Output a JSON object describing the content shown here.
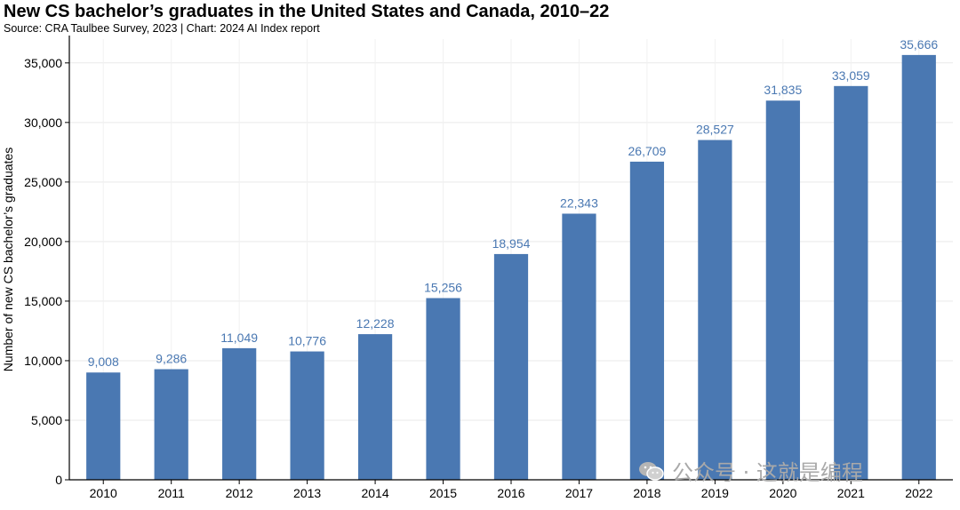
{
  "header": {
    "title": "New CS bachelor’s graduates in the United States and Canada, 2010–22",
    "subtitle": "Source: CRA Taulbee Survey, 2023 | Chart: 2024 AI Index report"
  },
  "watermark": {
    "text": "公众号 · 这就是编程",
    "icon": "wechat-icon"
  },
  "colors": {
    "bar": "#4a78b2",
    "label": "#4a78b2",
    "grid": "#e9e9e9",
    "axis": "#000000"
  },
  "chart_data": {
    "type": "bar",
    "title": "New CS bachelor’s graduates in the United States and Canada, 2010–22",
    "subtitle": "Source: CRA Taulbee Survey, 2023 | Chart: 2024 AI Index report",
    "xlabel": "",
    "ylabel": "Number of new CS bachelor’s graduates",
    "categories": [
      "2010",
      "2011",
      "2012",
      "2013",
      "2014",
      "2015",
      "2016",
      "2017",
      "2018",
      "2019",
      "2020",
      "2021",
      "2022"
    ],
    "values": [
      9008,
      9286,
      11049,
      10776,
      12228,
      15256,
      18954,
      22343,
      26709,
      28527,
      31835,
      33059,
      35666
    ],
    "data_labels": [
      "9,008",
      "9,286",
      "11,049",
      "10,776",
      "12,228",
      "15,256",
      "18,954",
      "22,343",
      "26,709",
      "28,527",
      "31,835",
      "33,059",
      "35,666"
    ],
    "ylim": [
      0,
      37000
    ],
    "yticks": [
      0,
      5000,
      10000,
      15000,
      20000,
      25000,
      30000,
      35000
    ],
    "ytick_labels": [
      "0",
      "5,000",
      "10,000",
      "15,000",
      "20,000",
      "25,000",
      "30,000",
      "35,000"
    ],
    "grid": true,
    "legend": "none"
  }
}
